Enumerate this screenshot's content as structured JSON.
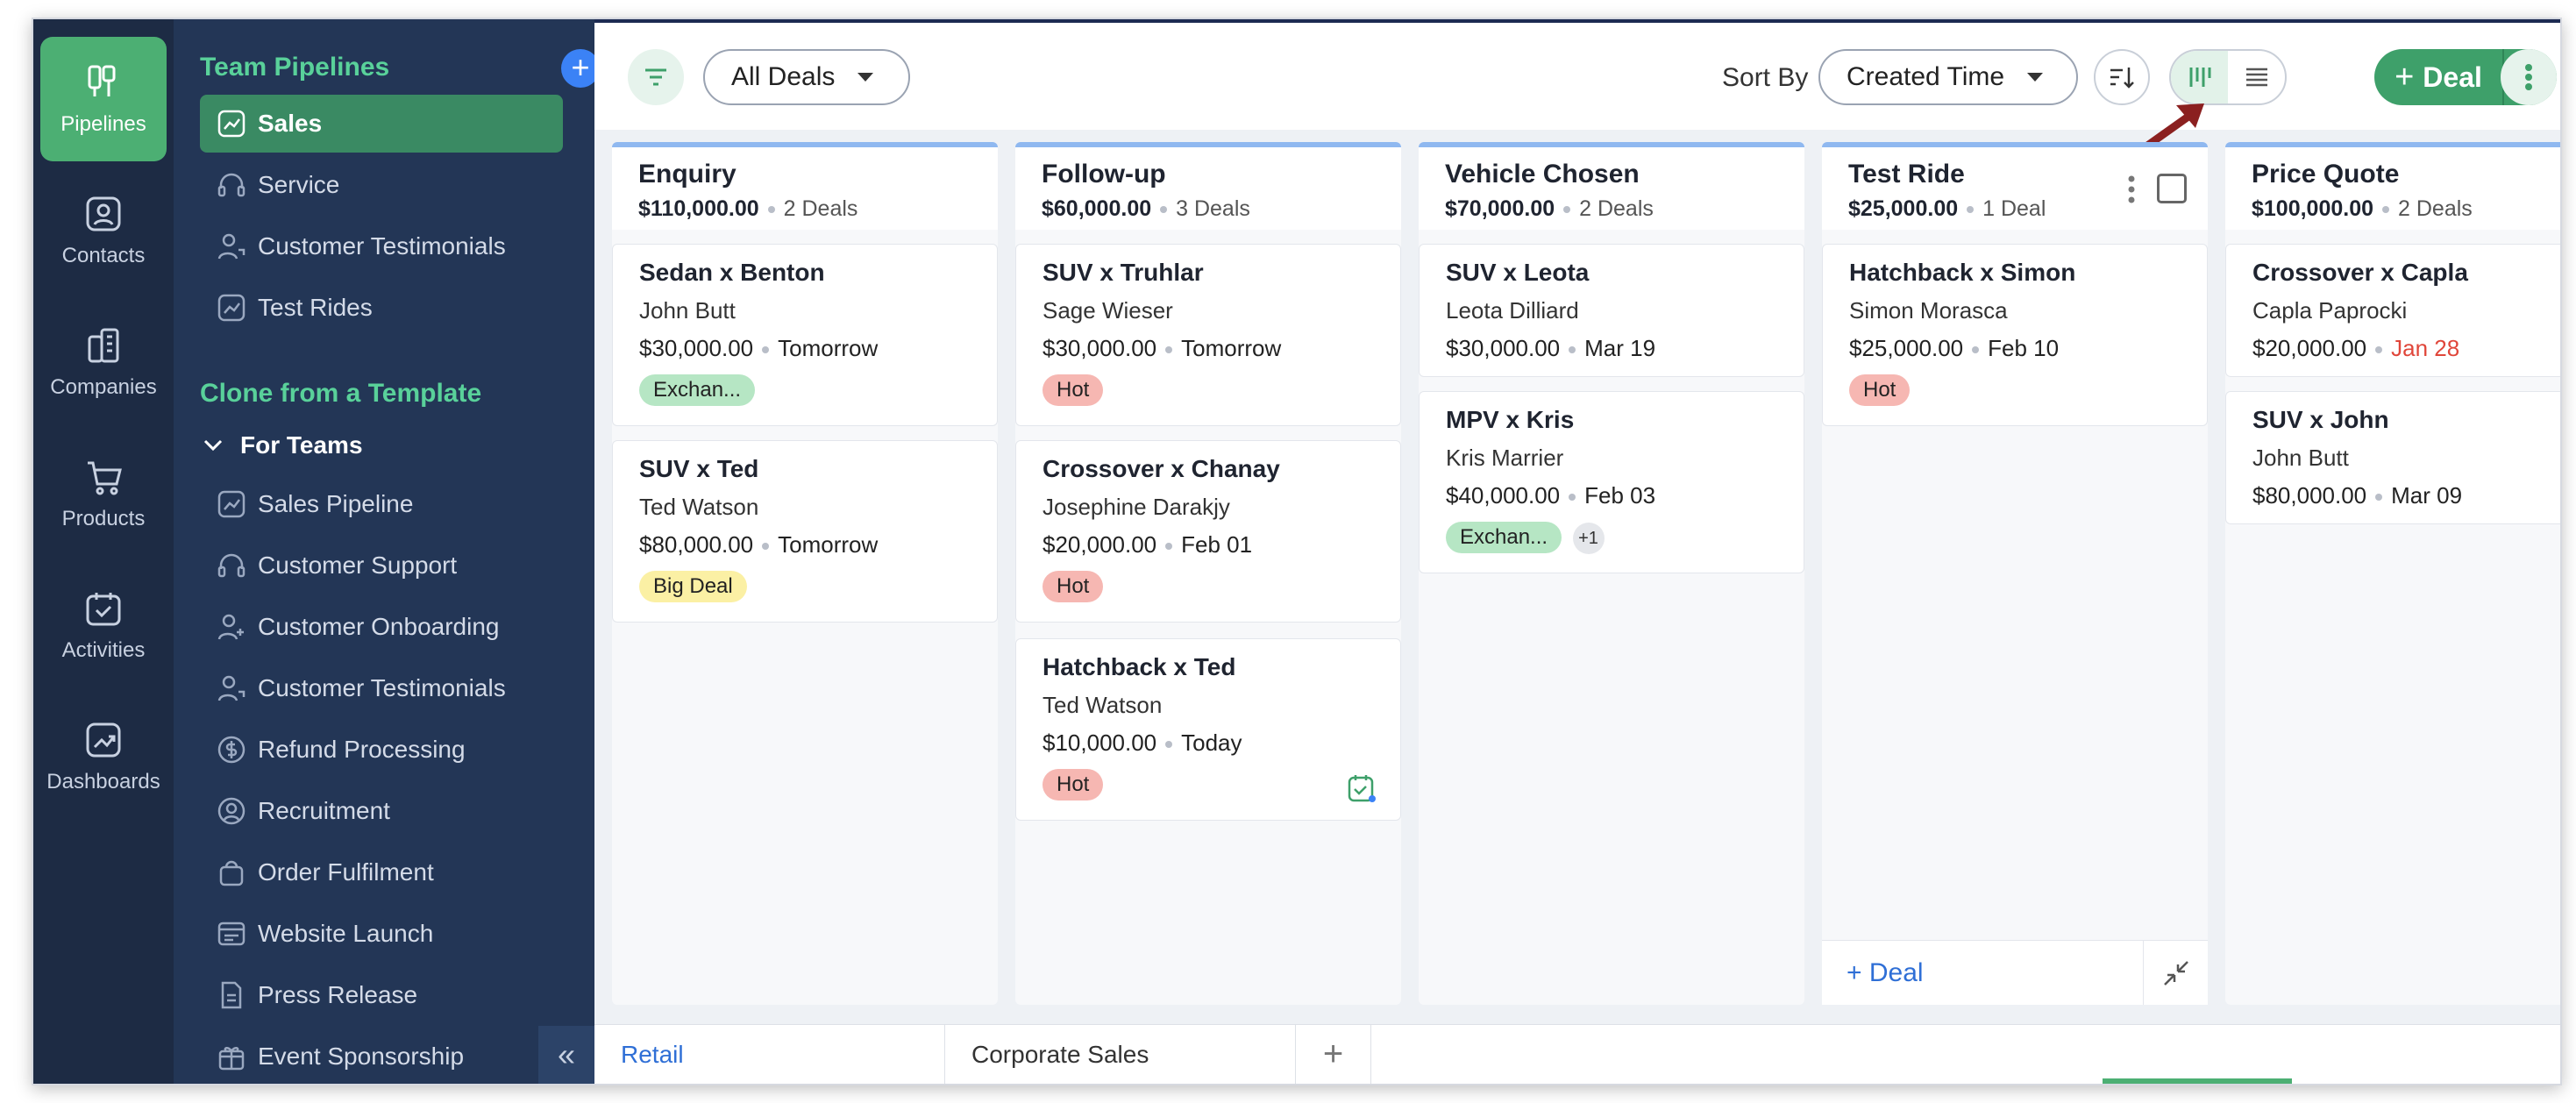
{
  "rail": {
    "items": [
      {
        "label": "Pipelines",
        "icon": "pipelines-icon",
        "active": true
      },
      {
        "label": "Contacts",
        "icon": "contacts-icon"
      },
      {
        "label": "Companies",
        "icon": "companies-icon"
      },
      {
        "label": "Products",
        "icon": "cart-icon"
      },
      {
        "label": "Activities",
        "icon": "calendar-check-icon"
      },
      {
        "label": "Dashboards",
        "icon": "chart-icon"
      }
    ]
  },
  "panel": {
    "team_heading": "Team Pipelines",
    "team_items": [
      "Sales",
      "Service",
      "Customer Testimonials",
      "Test Rides"
    ],
    "clone_heading": "Clone from a Template",
    "for_teams": "For Teams",
    "template_items": [
      "Sales Pipeline",
      "Customer Support",
      "Customer Onboarding",
      "Customer Testimonials",
      "Refund Processing",
      "Recruitment",
      "Order Fulfilment",
      "Website Launch",
      "Press Release",
      "Event Sponsorship"
    ],
    "collapse_glyph": "«"
  },
  "toolbar": {
    "view_select": "All Deals",
    "sort_by_label": "Sort By",
    "sort_select": "Created Time",
    "deal_button": "Deal",
    "deal_plus": "+"
  },
  "columns": [
    {
      "title": "Enquiry",
      "amount": "$110,000.00",
      "count": "2 Deals",
      "cards": [
        {
          "title": "Sedan x Benton",
          "person": "John Butt",
          "amount": "$30,000.00",
          "date": "Tomorrow",
          "tag": "Exchan...",
          "tag_color": "green"
        },
        {
          "title": "SUV x Ted",
          "person": "Ted Watson",
          "amount": "$80,000.00",
          "date": "Tomorrow",
          "tag": "Big Deal",
          "tag_color": "yellow"
        }
      ]
    },
    {
      "title": "Follow-up",
      "amount": "$60,000.00",
      "count": "3 Deals",
      "cards": [
        {
          "title": "SUV x Truhlar",
          "person": "Sage Wieser",
          "amount": "$30,000.00",
          "date": "Tomorrow",
          "tag": "Hot",
          "tag_color": "red"
        },
        {
          "title": "Crossover x Chanay",
          "person": "Josephine Darakjy",
          "amount": "$20,000.00",
          "date": "Feb 01",
          "tag": "Hot",
          "tag_color": "red"
        },
        {
          "title": "Hatchback x Ted",
          "person": "Ted Watson",
          "amount": "$10,000.00",
          "date": "Today",
          "tag": "Hot",
          "tag_color": "red"
        }
      ]
    },
    {
      "title": "Vehicle Chosen",
      "amount": "$70,000.00",
      "count": "2 Deals",
      "cards": [
        {
          "title": "SUV x Leota",
          "person": "Leota Dilliard",
          "amount": "$30,000.00",
          "date": "Mar 19"
        },
        {
          "title": "MPV x Kris",
          "person": "Kris Marrier",
          "amount": "$40,000.00",
          "date": "Feb 03",
          "tag": "Exchan...",
          "tag_color": "green",
          "extra": "+1"
        }
      ]
    },
    {
      "title": "Test Ride",
      "amount": "$25,000.00",
      "count": "1 Deal",
      "cards": [
        {
          "title": "Hatchback x Simon",
          "person": "Simon Morasca",
          "amount": "$25,000.00",
          "date": "Feb 10",
          "tag": "Hot",
          "tag_color": "red"
        }
      ],
      "footer_add": "+ Deal"
    },
    {
      "title": "Price Quote",
      "amount": "$100,000.00",
      "count": "2 Deals",
      "cards": [
        {
          "title": "Crossover x Capla",
          "person": "Capla Paprocki",
          "amount": "$20,000.00",
          "date": "Jan 28",
          "date_overdue": true
        },
        {
          "title": "SUV x John",
          "person": "John Butt",
          "amount": "$80,000.00",
          "date": "Mar 09"
        }
      ]
    }
  ],
  "tabs": {
    "items": [
      "Retail",
      "Corporate Sales"
    ],
    "add": "+"
  },
  "colors": {
    "accent_green": "#4caf73",
    "rail_bg": "#1d2b44",
    "panel_bg": "#233656",
    "link_blue": "#2f6fd6"
  }
}
